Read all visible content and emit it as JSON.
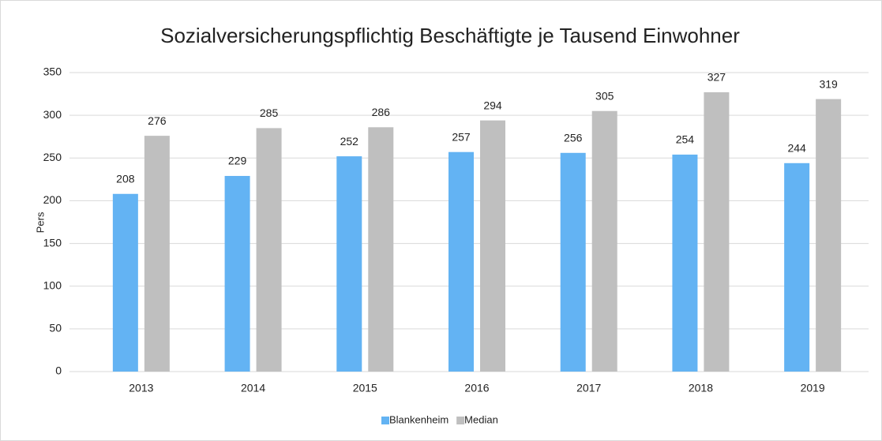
{
  "chart_data": {
    "type": "bar",
    "title": "Sozialversicherungspflichtig Beschäftigte je Tausend Einwohner",
    "y_label": "Pers",
    "categories": [
      "2013",
      "2014",
      "2015",
      "2016",
      "2017",
      "2018",
      "2019"
    ],
    "series": [
      {
        "name": "Blankenheim",
        "color": "#63b3f3",
        "values": [
          208,
          229,
          252,
          257,
          256,
          254,
          244
        ]
      },
      {
        "name": "Median",
        "color": "#bfbfbf",
        "values": [
          276,
          285,
          286,
          294,
          305,
          327,
          319
        ]
      }
    ],
    "ylim": [
      0,
      350
    ],
    "yticks": [
      0,
      50,
      100,
      150,
      200,
      250,
      300,
      350
    ],
    "grid": true,
    "legend": "bottom"
  }
}
